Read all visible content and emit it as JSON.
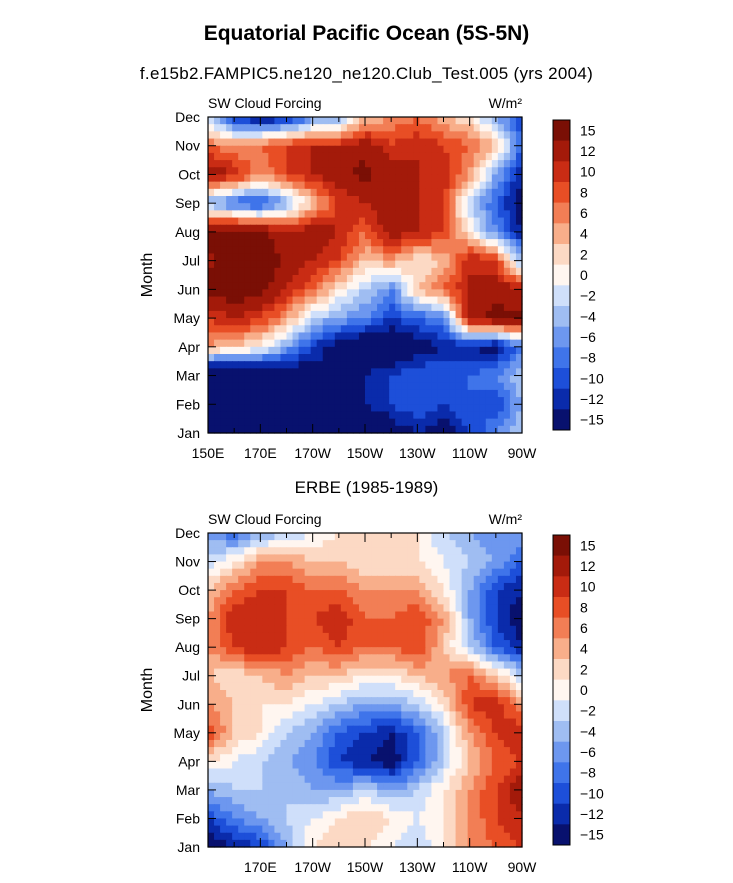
{
  "title": "Equatorial Pacific Ocean (5S-5N)",
  "subtitle": "f.e15b2.FAMPIC5.ne120_ne120.Club_Test.005 (yrs 2004)",
  "second_title": "ERBE (1985-1989)",
  "colors": {
    "scale": [
      "#08116e",
      "#0a2bab",
      "#1d4fd9",
      "#3f74ea",
      "#6d97ef",
      "#9fbdf2",
      "#cfdffa",
      "#fff6f0",
      "#fcd9c4",
      "#f8ae8a",
      "#f27e55",
      "#e84e25",
      "#c92c14",
      "#a31a0a",
      "#7a0f05"
    ]
  },
  "chart_data": [
    {
      "type": "heatmap",
      "panel_label": "SW Cloud Forcing",
      "units": "W/m²",
      "ylabel": "Month",
      "y_categories": [
        "Jan",
        "Feb",
        "Mar",
        "Apr",
        "May",
        "Jun",
        "Jul",
        "Aug",
        "Sep",
        "Oct",
        "Nov",
        "Dec"
      ],
      "x_tick_labels": [
        "150E",
        "170E",
        "170W",
        "150W",
        "130W",
        "110W",
        "90W"
      ],
      "xlim": [
        "150E",
        "90W"
      ],
      "colorbar_levels": [
        "15",
        "12",
        "10",
        "8",
        "6",
        "4",
        "2",
        "0",
        "−2",
        "−4",
        "−6",
        "−8",
        "−10",
        "−12",
        "−15"
      ],
      "x_longitudes": [
        150,
        160,
        170,
        180,
        190,
        200,
        210,
        220,
        230,
        240,
        250,
        260,
        270
      ],
      "values": [
        [
          -20,
          -20,
          -20,
          -18,
          -16,
          -16,
          -18,
          -14,
          -12,
          -14,
          -10,
          -6,
          -2
        ],
        [
          -20,
          -18,
          -18,
          -16,
          -14,
          -14,
          -12,
          -10,
          -8,
          -10,
          -8,
          -10,
          -4
        ],
        [
          -20,
          -20,
          -18,
          -16,
          -14,
          -12,
          -12,
          -10,
          -8,
          -8,
          -8,
          -6,
          -2
        ],
        [
          6,
          4,
          2,
          -4,
          -10,
          -14,
          -16,
          -16,
          -14,
          -12,
          -12,
          -14,
          -6
        ],
        [
          10,
          12,
          10,
          6,
          -2,
          -4,
          -6,
          -10,
          -8,
          -6,
          14,
          16,
          16
        ],
        [
          16,
          18,
          16,
          12,
          8,
          2,
          -2,
          -6,
          4,
          8,
          12,
          14,
          12
        ],
        [
          14,
          18,
          18,
          14,
          12,
          10,
          4,
          6,
          2,
          4,
          12,
          10,
          -4
        ],
        [
          16,
          18,
          16,
          12,
          14,
          12,
          8,
          14,
          12,
          10,
          2,
          -6,
          -12
        ],
        [
          -4,
          -8,
          -10,
          -4,
          4,
          10,
          12,
          14,
          12,
          10,
          -2,
          -8,
          -14
        ],
        [
          14,
          12,
          6,
          10,
          12,
          14,
          16,
          14,
          12,
          12,
          6,
          -4,
          -12
        ],
        [
          8,
          6,
          8,
          10,
          12,
          12,
          14,
          10,
          12,
          10,
          8,
          4,
          -8
        ],
        [
          -2,
          -10,
          -14,
          -12,
          -6,
          -4,
          4,
          6,
          8,
          4,
          2,
          -4,
          -10
        ]
      ]
    },
    {
      "type": "heatmap",
      "panel_label": "SW Cloud Forcing",
      "units": "W/m²",
      "ylabel": "Month",
      "y_categories": [
        "Jan",
        "Feb",
        "Mar",
        "Apr",
        "May",
        "Jun",
        "Jul",
        "Aug",
        "Sep",
        "Oct",
        "Nov",
        "Dec"
      ],
      "x_tick_labels": [
        "170E",
        "170W",
        "150W",
        "130W",
        "110W",
        "90W"
      ],
      "xlim": [
        "150E",
        "90W"
      ],
      "colorbar_levels": [
        "15",
        "12",
        "10",
        "8",
        "6",
        "4",
        "2",
        "0",
        "−2",
        "−4",
        "−6",
        "−8",
        "−10",
        "−12",
        "−15"
      ],
      "x_longitudes": [
        150,
        160,
        170,
        180,
        190,
        200,
        210,
        220,
        230,
        240,
        250,
        260,
        270
      ],
      "values": [
        [
          -14,
          -12,
          -10,
          -4,
          2,
          4,
          2,
          0,
          -2,
          2,
          6,
          8,
          10
        ],
        [
          -10,
          -6,
          -4,
          -2,
          0,
          2,
          4,
          2,
          0,
          2,
          6,
          10,
          12
        ],
        [
          -4,
          -2,
          -2,
          -2,
          -4,
          -4,
          -2,
          -4,
          -2,
          2,
          6,
          10,
          14
        ],
        [
          2,
          0,
          -2,
          -4,
          -6,
          -10,
          -12,
          -14,
          -8,
          -2,
          4,
          8,
          10
        ],
        [
          10,
          4,
          2,
          -2,
          -4,
          -8,
          -10,
          -12,
          -8,
          -2,
          6,
          10,
          12
        ],
        [
          6,
          4,
          2,
          2,
          0,
          -2,
          -4,
          -4,
          -2,
          2,
          10,
          12,
          6
        ],
        [
          4,
          2,
          4,
          6,
          4,
          4,
          2,
          2,
          4,
          6,
          8,
          4,
          -2
        ],
        [
          6,
          10,
          12,
          10,
          8,
          10,
          8,
          8,
          10,
          4,
          -2,
          -8,
          -12
        ],
        [
          6,
          12,
          12,
          10,
          10,
          12,
          8,
          8,
          10,
          6,
          -4,
          -10,
          -14
        ],
        [
          4,
          8,
          10,
          10,
          8,
          8,
          6,
          6,
          6,
          2,
          -4,
          -10,
          -12
        ],
        [
          -2,
          2,
          6,
          6,
          4,
          4,
          2,
          2,
          2,
          0,
          -2,
          -4,
          -8
        ],
        [
          -4,
          -8,
          -4,
          -2,
          0,
          2,
          2,
          2,
          2,
          -2,
          -4,
          -6,
          -4
        ]
      ]
    }
  ]
}
